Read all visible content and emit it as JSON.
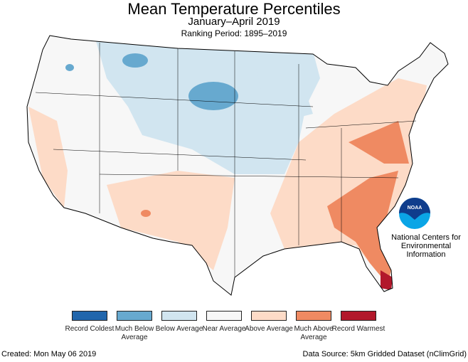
{
  "header": {
    "title": "Mean Temperature Percentiles",
    "subtitle": "January–April 2019",
    "ranking": "Ranking Period: 1895–2019"
  },
  "legend": [
    {
      "label": "Record Coldest",
      "color": "#2166ac"
    },
    {
      "label": "Much Below Average",
      "color": "#67a9cf"
    },
    {
      "label": "Below Average",
      "color": "#d1e5f0"
    },
    {
      "label": "Near Average",
      "color": "#f7f7f7"
    },
    {
      "label": "Above Average",
      "color": "#fddbc7"
    },
    {
      "label": "Much Above Average",
      "color": "#ef8a62"
    },
    {
      "label": "Record Warmest",
      "color": "#b2182b"
    }
  ],
  "logo": {
    "text": "NOAA",
    "org": "National Centers for Environmental Information"
  },
  "footer": {
    "created": "Created: Mon May 06 2019",
    "source": "Data Source: 5km Gridded Dataset (nClimGrid)"
  }
}
